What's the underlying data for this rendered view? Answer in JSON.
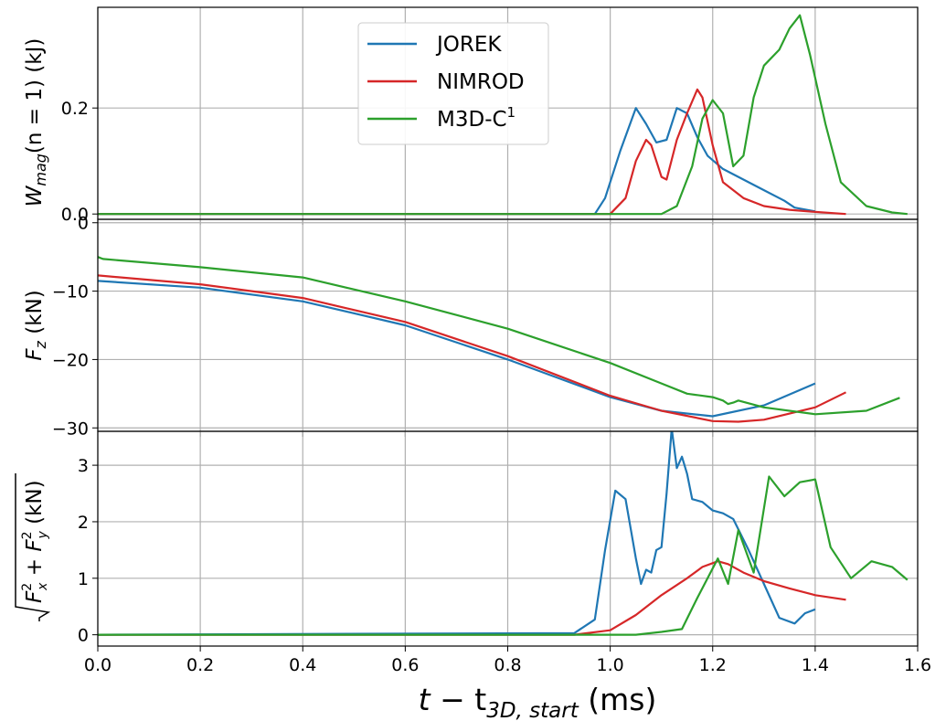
{
  "colors": {
    "JOREK": "#1f77b4",
    "NIMROD": "#d62728",
    "M3D-C1": "#2ca02c",
    "grid": "#b0b0b0"
  },
  "figure": {
    "xlabel": "t − t3D, start (ms)",
    "xlabel_parts": {
      "t": "t",
      "minus": " − t",
      "sub": "3D, start",
      "units": " (ms)"
    }
  },
  "legend": {
    "entries": [
      {
        "key": "JOREK",
        "label": "JOREK"
      },
      {
        "key": "NIMROD",
        "label": "NIMROD"
      },
      {
        "key": "M3D-C1",
        "label": "M3D-C",
        "sup": "1"
      }
    ]
  },
  "chart_data": [
    {
      "type": "line",
      "panel": "top",
      "ylabel": "W_mag(n = 1) (kJ)",
      "ylabel_parts": {
        "W": "W",
        "sub": "mag",
        "rest": "(n = 1) (kJ)"
      },
      "legend_position": "top-center",
      "grid": true,
      "xlim": [
        0,
        1.6
      ],
      "ylim": [
        -0.01,
        0.39
      ],
      "xticks": [
        0.0,
        0.2,
        0.4,
        0.6,
        0.8,
        1.0,
        1.2,
        1.4,
        1.6
      ],
      "yticks": [
        0.0,
        0.2
      ],
      "ytick_labels": [
        "0.0",
        "0.2"
      ],
      "series": [
        {
          "name": "JOREK",
          "x": [
            0,
            0.97,
            0.99,
            1.02,
            1.05,
            1.07,
            1.09,
            1.11,
            1.13,
            1.15,
            1.17,
            1.19,
            1.22,
            1.26,
            1.3,
            1.34,
            1.36,
            1.4
          ],
          "y": [
            0,
            0,
            0.03,
            0.12,
            0.2,
            0.17,
            0.135,
            0.14,
            0.2,
            0.19,
            0.145,
            0.11,
            0.085,
            0.065,
            0.045,
            0.025,
            0.012,
            0.005
          ]
        },
        {
          "name": "NIMROD",
          "x": [
            0,
            1.0,
            1.03,
            1.05,
            1.07,
            1.08,
            1.1,
            1.11,
            1.13,
            1.15,
            1.17,
            1.18,
            1.2,
            1.22,
            1.26,
            1.3,
            1.35,
            1.4,
            1.46
          ],
          "y": [
            0,
            0,
            0.03,
            0.1,
            0.14,
            0.13,
            0.07,
            0.065,
            0.14,
            0.19,
            0.235,
            0.22,
            0.13,
            0.06,
            0.03,
            0.015,
            0.008,
            0.004,
            0
          ]
        },
        {
          "name": "M3D-C1",
          "x": [
            0,
            1.1,
            1.13,
            1.16,
            1.18,
            1.2,
            1.22,
            1.24,
            1.26,
            1.28,
            1.3,
            1.33,
            1.35,
            1.37,
            1.39,
            1.42,
            1.45,
            1.5,
            1.55,
            1.58
          ],
          "y": [
            0,
            0,
            0.015,
            0.09,
            0.18,
            0.215,
            0.19,
            0.09,
            0.11,
            0.22,
            0.28,
            0.31,
            0.35,
            0.375,
            0.3,
            0.17,
            0.06,
            0.015,
            0.003,
            0
          ]
        }
      ]
    },
    {
      "type": "line",
      "panel": "middle",
      "ylabel": "F_z (kN)",
      "ylabel_parts": {
        "F": "F",
        "sub": "z",
        "rest": " (kN)"
      },
      "grid": true,
      "xlim": [
        0,
        1.6
      ],
      "ylim": [
        -30.5,
        0.5
      ],
      "xticks": [
        0.0,
        0.2,
        0.4,
        0.6,
        0.8,
        1.0,
        1.2,
        1.4,
        1.6
      ],
      "yticks": [
        0,
        -10,
        -20,
        -30
      ],
      "ytick_labels": [
        "0",
        "−10",
        "−20",
        "−30"
      ],
      "series": [
        {
          "name": "JOREK",
          "x": [
            0,
            0.2,
            0.4,
            0.6,
            0.8,
            1.0,
            1.1,
            1.2,
            1.3,
            1.4
          ],
          "y": [
            -8.5,
            -9.5,
            -11.5,
            -15,
            -20,
            -25.5,
            -27.5,
            -28.3,
            -26.7,
            -23.5
          ]
        },
        {
          "name": "NIMROD",
          "x": [
            0,
            0.2,
            0.4,
            0.6,
            0.8,
            1.0,
            1.1,
            1.2,
            1.25,
            1.3,
            1.4,
            1.46
          ],
          "y": [
            -7.7,
            -9.0,
            -11.0,
            -14.5,
            -19.5,
            -25.3,
            -27.5,
            -29.0,
            -29.1,
            -28.8,
            -27.0,
            -24.8
          ]
        },
        {
          "name": "M3D-C1",
          "x": [
            0,
            0.01,
            0.2,
            0.4,
            0.6,
            0.8,
            1.0,
            1.1,
            1.15,
            1.2,
            1.22,
            1.23,
            1.24,
            1.25,
            1.3,
            1.4,
            1.5,
            1.565
          ],
          "y": [
            -5.0,
            -5.3,
            -6.5,
            -8.0,
            -11.5,
            -15.5,
            -20.5,
            -23.5,
            -25.0,
            -25.5,
            -26.0,
            -26.5,
            -26.3,
            -26.0,
            -27.0,
            -28.0,
            -27.5,
            -25.6
          ]
        }
      ]
    },
    {
      "type": "line",
      "panel": "bottom",
      "ylabel": "√(Fx² + Fy²) (kN)",
      "ylabel_parts": {
        "F1": "F",
        "sub1": "x",
        "sup1": "2",
        "plus": " + ",
        "F2": "F",
        "sub2": "y",
        "sup2": "2",
        "rest": " (kN)"
      },
      "grid": true,
      "xlim": [
        0,
        1.6
      ],
      "ylim": [
        -0.2,
        3.6
      ],
      "xticks": [
        0.0,
        0.2,
        0.4,
        0.6,
        0.8,
        1.0,
        1.2,
        1.4,
        1.6
      ],
      "xtick_labels": [
        "0.0",
        "0.2",
        "0.4",
        "0.6",
        "0.8",
        "1.0",
        "1.2",
        "1.4",
        "1.6"
      ],
      "yticks": [
        0,
        1,
        2,
        3
      ],
      "ytick_labels": [
        "0",
        "1",
        "2",
        "3"
      ],
      "series": [
        {
          "name": "JOREK",
          "x": [
            0,
            0.93,
            0.97,
            0.99,
            1.01,
            1.03,
            1.05,
            1.06,
            1.07,
            1.08,
            1.09,
            1.1,
            1.11,
            1.12,
            1.13,
            1.14,
            1.15,
            1.16,
            1.18,
            1.2,
            1.22,
            1.24,
            1.27,
            1.3,
            1.33,
            1.36,
            1.38,
            1.4
          ],
          "y": [
            0,
            0.03,
            0.27,
            1.5,
            2.55,
            2.4,
            1.35,
            0.9,
            1.15,
            1.1,
            1.5,
            1.55,
            2.5,
            3.65,
            2.95,
            3.15,
            2.85,
            2.4,
            2.35,
            2.2,
            2.15,
            2.05,
            1.5,
            0.9,
            0.3,
            0.2,
            0.38,
            0.45
          ]
        },
        {
          "name": "NIMROD",
          "x": [
            0,
            0.93,
            1.0,
            1.05,
            1.1,
            1.15,
            1.18,
            1.21,
            1.23,
            1.26,
            1.3,
            1.35,
            1.4,
            1.46
          ],
          "y": [
            0,
            0,
            0.08,
            0.35,
            0.7,
            1.0,
            1.2,
            1.3,
            1.25,
            1.1,
            0.95,
            0.82,
            0.7,
            0.62
          ]
        },
        {
          "name": "M3D-C1",
          "x": [
            0,
            1.05,
            1.1,
            1.14,
            1.17,
            1.21,
            1.23,
            1.25,
            1.28,
            1.31,
            1.34,
            1.37,
            1.4,
            1.43,
            1.47,
            1.51,
            1.55,
            1.58
          ],
          "y": [
            0,
            0,
            0.05,
            0.1,
            0.65,
            1.35,
            0.9,
            1.85,
            1.1,
            2.8,
            2.45,
            2.7,
            2.75,
            1.55,
            1.0,
            1.3,
            1.2,
            0.97
          ]
        }
      ]
    }
  ]
}
